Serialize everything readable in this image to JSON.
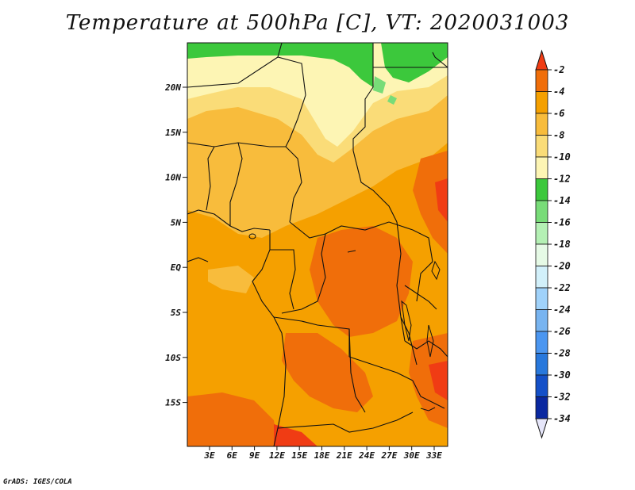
{
  "title": "Temperature at 500hPa [C], VT: 2020031003",
  "credit": "GrADS: IGES/COLA",
  "lat_labels": [
    "20N",
    "15N",
    "10N",
    "5N",
    "EQ",
    "5S",
    "10S",
    "15S"
  ],
  "lon_labels": [
    "3E",
    "6E",
    "9E",
    "12E",
    "15E",
    "18E",
    "21E",
    "24E",
    "27E",
    "30E",
    "33E"
  ],
  "colorbar": {
    "labels": [
      "-2",
      "-4",
      "-6",
      "-8",
      "-10",
      "-12",
      "-14",
      "-16",
      "-18",
      "-20",
      "-22",
      "-24",
      "-26",
      "-28",
      "-30",
      "-32",
      "-34"
    ],
    "colors": [
      "#f03c14",
      "#f06e0a",
      "#f5a000",
      "#f8bc3c",
      "#fadc78",
      "#fdf5b4",
      "#3cc83c",
      "#78dc78",
      "#b4f0b4",
      "#e6fae6",
      "#d2f0fa",
      "#a0d2fa",
      "#78b4f0",
      "#4b96f0",
      "#2878dc",
      "#1450c8",
      "#0a28a0",
      "#000a78"
    ],
    "top_color": "#f03c14",
    "bottom_color": "#e6e6fa"
  },
  "palette": {
    "light_yellow": "#fdf5b4",
    "yellow": "#fadc78",
    "light_orange": "#f8bc3c",
    "orange": "#f5a000",
    "dark_orange": "#f06e0a",
    "red_orange": "#f03c14",
    "green": "#3cc83c",
    "light_green": "#78dc78",
    "border": "#111111"
  }
}
